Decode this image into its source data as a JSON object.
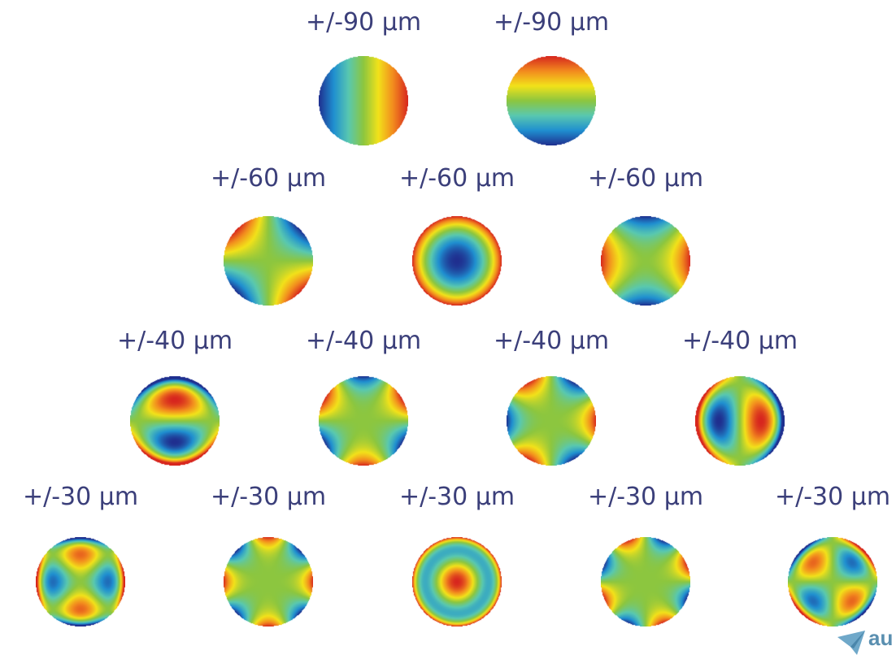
{
  "diagram": {
    "rows": [
      {
        "patterns": [
          {
            "label": "+/-90 µm",
            "mode": "tilt-x"
          },
          {
            "label": "+/-90 µm",
            "mode": "tilt-y"
          }
        ]
      },
      {
        "patterns": [
          {
            "label": "+/-60 µm",
            "mode": "astig-oblique"
          },
          {
            "label": "+/-60 µm",
            "mode": "defocus"
          },
          {
            "label": "+/-60 µm",
            "mode": "astig-vertical"
          }
        ]
      },
      {
        "patterns": [
          {
            "label": "+/-40 µm",
            "mode": "coma-vertical"
          },
          {
            "label": "+/-40 µm",
            "mode": "trefoil-a"
          },
          {
            "label": "+/-40 µm",
            "mode": "trefoil-b"
          },
          {
            "label": "+/-40 µm",
            "mode": "coma-horizontal"
          }
        ]
      },
      {
        "patterns": [
          {
            "label": "+/-30 µm",
            "mode": "secondary-astig-a"
          },
          {
            "label": "+/-30 µm",
            "mode": "tetrafoil-a"
          },
          {
            "label": "+/-30 µm",
            "mode": "spherical"
          },
          {
            "label": "+/-30 µm",
            "mode": "tetrafoil-b"
          },
          {
            "label": "+/-30 µm",
            "mode": "secondary-astig-b"
          }
        ]
      }
    ],
    "colormap": [
      "#1f2f8f",
      "#1f8fd0",
      "#59c8b0",
      "#8cc63f",
      "#f2e21a",
      "#f28a1e",
      "#d7261e"
    ],
    "logo": {
      "text": "au",
      "icon": "paper-plane-icon"
    }
  }
}
